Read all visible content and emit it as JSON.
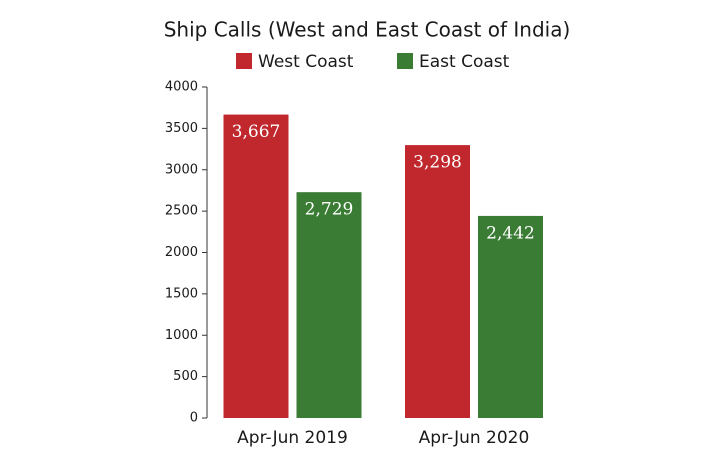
{
  "chart_data": {
    "type": "bar",
    "title": "Ship Calls (West and East Coast of India)",
    "categories": [
      "Apr-Jun 2019",
      "Apr-Jun 2020"
    ],
    "series": [
      {
        "name": "West Coast",
        "color": "#c0282e",
        "values": [
          3667,
          3298
        ],
        "value_labels": [
          "3,667",
          "3,298"
        ]
      },
      {
        "name": "East Coast",
        "color": "#3b7c35",
        "values": [
          2729,
          2442
        ],
        "value_labels": [
          "2,729",
          "2,442"
        ]
      }
    ],
    "ylim": [
      0,
      4000
    ],
    "yticks": [
      0,
      500,
      1000,
      1500,
      2000,
      2500,
      3000,
      3500,
      4000
    ],
    "grid": false,
    "legend": "top"
  }
}
